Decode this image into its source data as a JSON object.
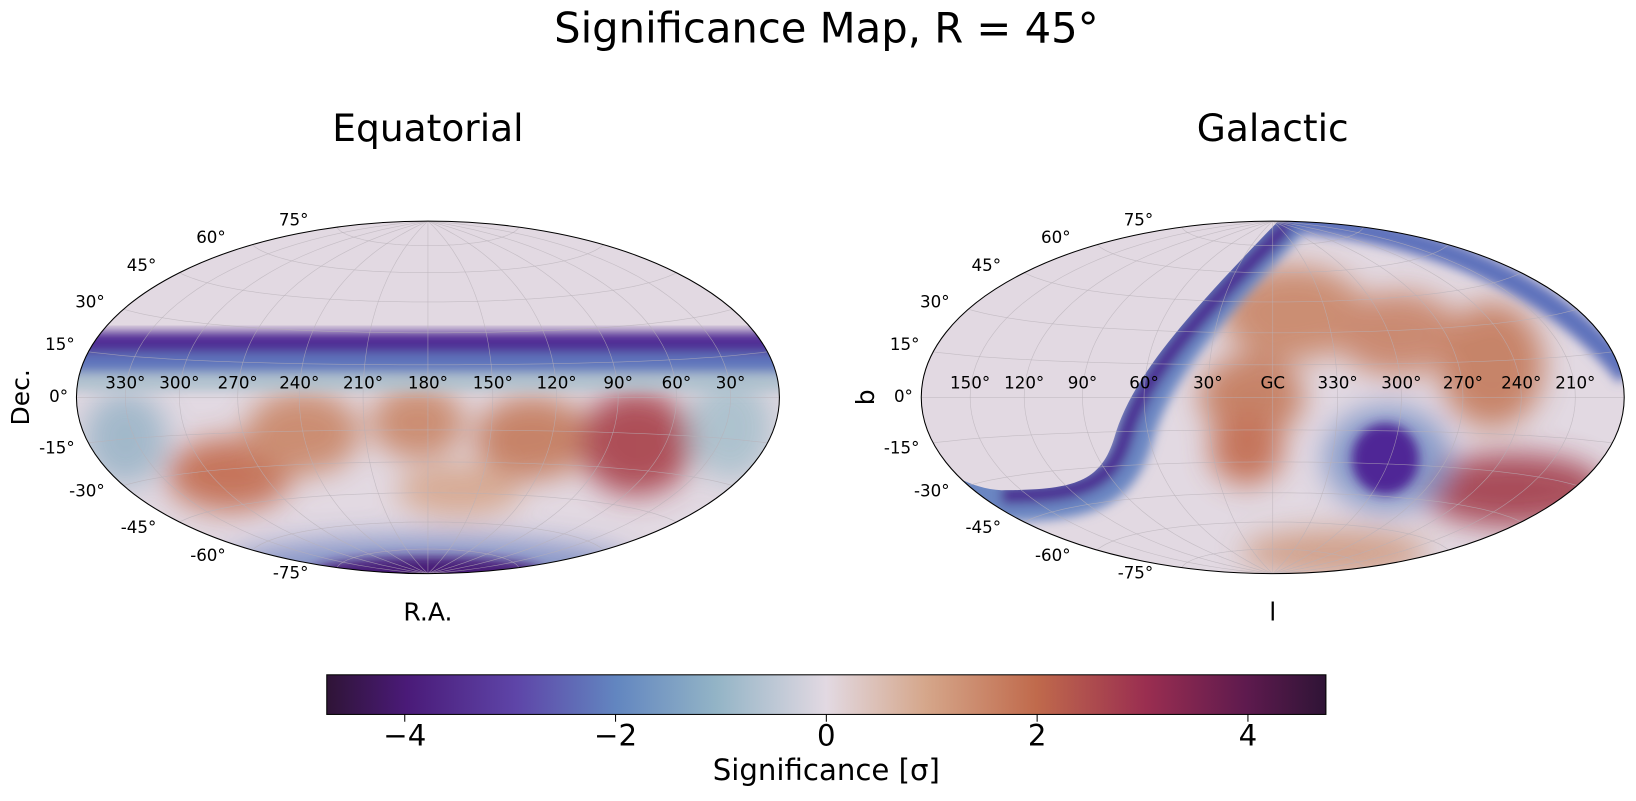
{
  "title": "Significance Map, R = 45°",
  "chart_data": [
    {
      "type": "map",
      "title": "Equatorial",
      "xlabel": "R.A.",
      "ylabel": "Dec.",
      "xlim": [
        360,
        0
      ],
      "ylim": [
        -90,
        90
      ],
      "xticks": [
        {
          "value": 330,
          "label": "330°"
        },
        {
          "value": 300,
          "label": "300°"
        },
        {
          "value": 270,
          "label": "270°"
        },
        {
          "value": 240,
          "label": "240°"
        },
        {
          "value": 210,
          "label": "210°"
        },
        {
          "value": 180,
          "label": "180°"
        },
        {
          "value": 150,
          "label": "150°"
        },
        {
          "value": 120,
          "label": "120°"
        },
        {
          "value": 90,
          "label": "90°"
        },
        {
          "value": 60,
          "label": "60°"
        },
        {
          "value": 30,
          "label": "30°"
        }
      ],
      "yticks": [
        {
          "value": -75,
          "label": "-75°"
        },
        {
          "value": -60,
          "label": "-60°"
        },
        {
          "value": -45,
          "label": "-45°"
        },
        {
          "value": -30,
          "label": "-30°"
        },
        {
          "value": -15,
          "label": "-15°"
        },
        {
          "value": 0,
          "label": "0°"
        },
        {
          "value": 15,
          "label": "15°"
        },
        {
          "value": 30,
          "label": "30°"
        },
        {
          "value": 45,
          "label": "45°"
        },
        {
          "value": 60,
          "label": "60°"
        },
        {
          "value": 75,
          "label": "75°"
        }
      ],
      "grid": true
    },
    {
      "type": "map",
      "title": "Galactic",
      "xlabel": "l",
      "ylabel": "b",
      "xlim": [
        180,
        -180
      ],
      "ylim": [
        -90,
        90
      ],
      "xticks": [
        {
          "value": 150,
          "label": "150°"
        },
        {
          "value": 120,
          "label": "120°"
        },
        {
          "value": 90,
          "label": "90°"
        },
        {
          "value": 60,
          "label": "60°"
        },
        {
          "value": 30,
          "label": "30°"
        },
        {
          "value": 0,
          "label": "GC"
        },
        {
          "value": 330,
          "label": "330°"
        },
        {
          "value": 300,
          "label": "300°"
        },
        {
          "value": 270,
          "label": "270°"
        },
        {
          "value": 240,
          "label": "240°"
        },
        {
          "value": 210,
          "label": "210°"
        }
      ],
      "yticks": [
        {
          "value": -75,
          "label": "-75°"
        },
        {
          "value": -60,
          "label": "-60°"
        },
        {
          "value": -45,
          "label": "-45°"
        },
        {
          "value": -30,
          "label": "-30°"
        },
        {
          "value": -15,
          "label": "-15°"
        },
        {
          "value": 0,
          "label": "0°"
        },
        {
          "value": 15,
          "label": "15°"
        },
        {
          "value": 30,
          "label": "30°"
        },
        {
          "value": 45,
          "label": "45°"
        },
        {
          "value": 60,
          "label": "60°"
        },
        {
          "value": 75,
          "label": "75°"
        }
      ],
      "grid": true
    }
  ],
  "colorbar": {
    "label": "Significance [σ]",
    "lim": [
      -4.74,
      4.74
    ],
    "ticks": [
      {
        "value": -4,
        "label": "−4"
      },
      {
        "value": -2,
        "label": "−2"
      },
      {
        "value": 0,
        "label": "0"
      },
      {
        "value": 2,
        "label": "2"
      },
      {
        "value": 4,
        "label": "4"
      }
    ]
  }
}
